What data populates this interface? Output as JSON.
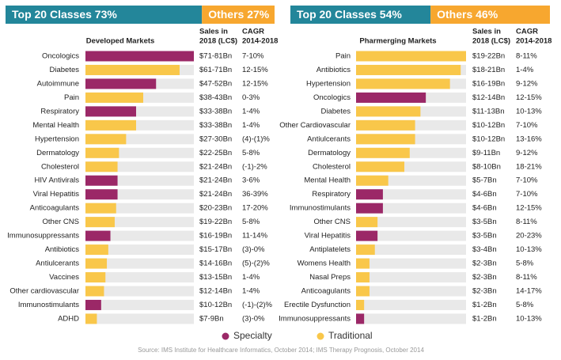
{
  "chart_data": [
    {
      "type": "barh",
      "share": {
        "names": [
          "Top 20 Classes",
          "Others"
        ],
        "values": [
          73,
          27
        ],
        "value_labels": [
          "73%",
          "27%"
        ],
        "colors": [
          "#23869a",
          "#f7a72f"
        ]
      },
      "title": "Developed Markets",
      "sales_header": [
        "Sales in",
        "2018 (LC$)"
      ],
      "cagr_header": [
        "CAGR",
        "2014-2018"
      ],
      "categories": [
        "Oncologics",
        "Diabetes",
        "Autoimmune",
        "Pain",
        "Respiratory",
        "Mental Health",
        "Hypertension",
        "Dermatology",
        "Cholesterol",
        "HIV Antivirals",
        "Viral Hepatitis",
        "Anticoagulants",
        "Other CNS",
        "Immunosuppressants",
        "Antibiotics",
        "Antiulcerants",
        "Vaccines",
        "Other cardiovascular",
        "Immunostimulants",
        "ADHD"
      ],
      "values": [
        76,
        66,
        49.5,
        40.5,
        35.5,
        35.5,
        28.5,
        23.5,
        22.5,
        22.5,
        22.5,
        21.5,
        20.5,
        17.5,
        16,
        15,
        14,
        13,
        11,
        8
      ],
      "classes": [
        "Specialty",
        "Traditional",
        "Specialty",
        "Traditional",
        "Specialty",
        "Traditional",
        "Traditional",
        "Traditional",
        "Traditional",
        "Specialty",
        "Specialty",
        "Traditional",
        "Traditional",
        "Specialty",
        "Traditional",
        "Traditional",
        "Traditional",
        "Traditional",
        "Specialty",
        "Traditional"
      ],
      "sales": [
        "$71-81Bn",
        "$61-71Bn",
        "$47-52Bn",
        "$38-43Bn",
        "$33-38Bn",
        "$33-38Bn",
        "$27-30Bn",
        "$22-25Bn",
        "$21-24Bn",
        "$21-24Bn",
        "$21-24Bn",
        "$20-23Bn",
        "$19-22Bn",
        "$16-19Bn",
        "$15-17Bn",
        "$14-16Bn",
        "$13-15Bn",
        "$12-14Bn",
        "$10-12Bn",
        "$7-9Bn"
      ],
      "cagr": [
        "7-10%",
        "12-15%",
        "12-15%",
        "0-3%",
        "1-4%",
        "1-4%",
        "(4)-(1)%",
        "5-8%",
        "(-1)-2%",
        "3-6%",
        "36-39%",
        "17-20%",
        "5-8%",
        "11-14%",
        "(3)-0%",
        "(5)-(2)%",
        "1-4%",
        "1-4%",
        "(-1)-(2)%",
        "(3)-0%"
      ],
      "xlim": [
        0,
        76
      ]
    },
    {
      "type": "barh",
      "share": {
        "names": [
          "Top 20 Classes",
          "Others"
        ],
        "values": [
          54,
          46
        ],
        "value_labels": [
          "54%",
          "46%"
        ],
        "colors": [
          "#23869a",
          "#f7a72f"
        ]
      },
      "title": "Pharmerging Markets",
      "sales_header": [
        "Sales in",
        "2018 (LC$)"
      ],
      "cagr_header": [
        "CAGR",
        "2014-2018"
      ],
      "categories": [
        "Pain",
        "Antibiotics",
        "Hypertension",
        "Oncologics",
        "Diabetes",
        "Other Cardiovascular",
        "Antiulcerants",
        "Dermatology",
        "Cholesterol",
        "Mental Health",
        "Respiratory",
        "Immunostimulants",
        "Other CNS",
        "Viral Hepatitis",
        "Antiplatelets",
        "Womens Health",
        "Nasal Preps",
        "Anticoagulants",
        "Erectile Dysfunction",
        "Immunosuppressants"
      ],
      "values": [
        20.5,
        19.5,
        17.5,
        13,
        12,
        11,
        11,
        10,
        9,
        6,
        5,
        5,
        4,
        4,
        3.5,
        2.5,
        2.5,
        2.5,
        1.5,
        1.5
      ],
      "classes": [
        "Traditional",
        "Traditional",
        "Traditional",
        "Specialty",
        "Traditional",
        "Traditional",
        "Traditional",
        "Traditional",
        "Traditional",
        "Traditional",
        "Specialty",
        "Specialty",
        "Traditional",
        "Specialty",
        "Traditional",
        "Traditional",
        "Traditional",
        "Traditional",
        "Traditional",
        "Specialty"
      ],
      "sales": [
        "$19-22Bn",
        "$18-21Bn",
        "$16-19Bn",
        "$12-14Bn",
        "$11-13Bn",
        "$10-12Bn",
        "$10-12Bn",
        "$9-11Bn",
        "$8-10Bn",
        "$5-7Bn",
        "$4-6Bn",
        "$4-6Bn",
        "$3-5Bn",
        "$3-5Bn",
        "$3-4Bn",
        "$2-3Bn",
        "$2-3Bn",
        "$2-3Bn",
        "$1-2Bn",
        "$1-2Bn"
      ],
      "cagr": [
        "8-11%",
        "1-4%",
        "9-12%",
        "12-15%",
        "10-13%",
        "7-10%",
        "13-16%",
        "9-12%",
        "18-21%",
        "7-10%",
        "7-10%",
        "12-15%",
        "8-11%",
        "20-23%",
        "10-13%",
        "5-8%",
        "8-11%",
        "14-17%",
        "5-8%",
        "10-13%"
      ],
      "xlim": [
        0,
        20.5
      ]
    }
  ],
  "legend": [
    {
      "name": "Specialty",
      "color": "#9b2867"
    },
    {
      "name": "Traditional",
      "color": "#f9c74a"
    }
  ],
  "source": "Source: IMS Institute for Healthcare Informatics, October 2014; IMS Therapy Prognosis, October 2014"
}
